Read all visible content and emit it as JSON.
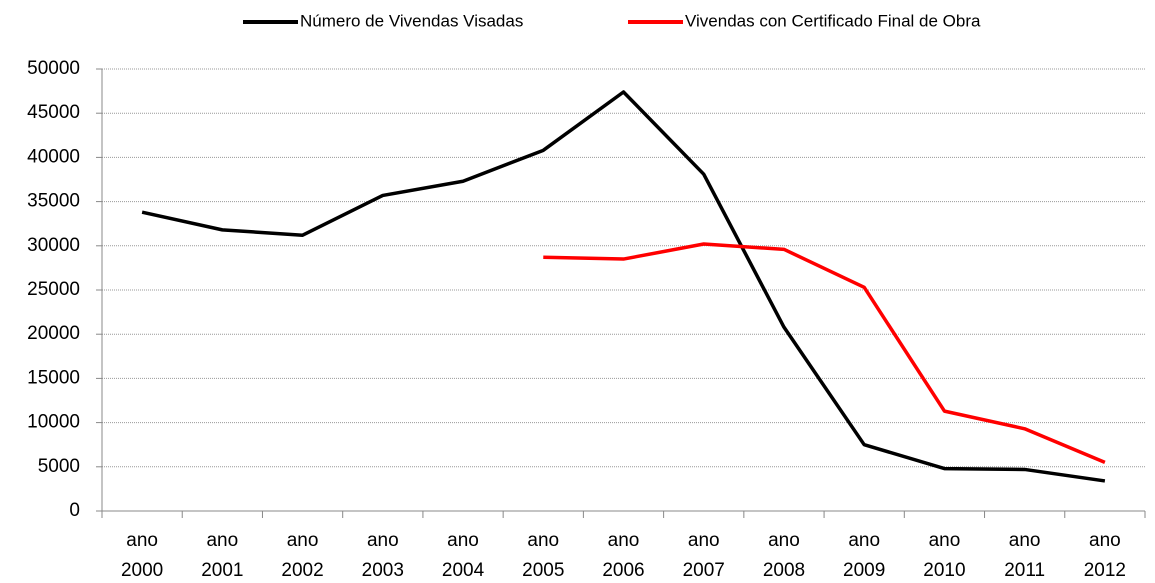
{
  "chart_data": {
    "type": "line",
    "categories": [
      "ano 2000",
      "ano 2001",
      "ano 2002",
      "ano 2003",
      "ano 2004",
      "ano 2005",
      "ano 2006",
      "ano 2007",
      "ano 2008",
      "ano 2009",
      "ano 2010",
      "ano 2011",
      "ano 2012"
    ],
    "series": [
      {
        "name": "Número de Vivendas Visadas",
        "color": "#000000",
        "values": [
          33800,
          31800,
          31200,
          35700,
          37300,
          40800,
          47400,
          38100,
          20800,
          7500,
          4800,
          4700,
          3400
        ]
      },
      {
        "name": "Vivendas con Certificado Final de Obra",
        "color": "#ff0000",
        "values": [
          null,
          null,
          null,
          null,
          null,
          28700,
          28500,
          30200,
          29600,
          25300,
          11300,
          9300,
          5500
        ]
      }
    ],
    "ylim": [
      0,
      50000
    ],
    "yticks": [
      0,
      5000,
      10000,
      15000,
      20000,
      25000,
      30000,
      35000,
      40000,
      45000,
      50000
    ],
    "grid": true,
    "legend": "top"
  }
}
